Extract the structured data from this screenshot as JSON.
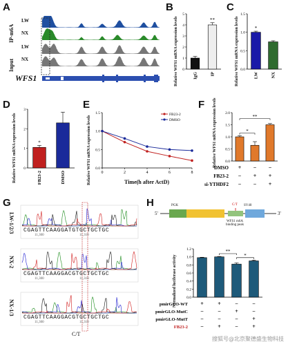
{
  "panels": {
    "A": {
      "label": "A",
      "group_top": "IP-m6A",
      "group_bottom": "Input",
      "tracks": [
        "LW",
        "NX",
        "LW",
        "NX"
      ],
      "gene": "WFS1",
      "track_colors": [
        "#1f4fa0",
        "#2a8a2a",
        "#777777",
        "#777777"
      ]
    },
    "B": {
      "label": "B",
      "chart_data": {
        "type": "bar",
        "categories": [
          "IgG",
          "IP"
        ],
        "values": [
          1.0,
          4.0
        ],
        "errors": [
          0.15,
          0.2
        ],
        "ylabel": "Relative WFS1 mRNA expression levels",
        "ylim": [
          0,
          5
        ],
        "yticks": [
          0,
          1,
          2,
          3,
          4,
          5
        ],
        "significance": "**",
        "colors": [
          "#111111",
          "#eeeeee"
        ]
      }
    },
    "C": {
      "label": "C",
      "chart_data": {
        "type": "bar",
        "categories": [
          "LW",
          "NX"
        ],
        "values": [
          1.0,
          0.74
        ],
        "errors": [
          0.03,
          0.03
        ],
        "ylabel": "Relative WFS1 mRNA expression levels",
        "ylim": [
          0,
          1.5
        ],
        "yticks": [
          0.0,
          0.5,
          1.0,
          1.5
        ],
        "significance": "*",
        "colors": [
          "#1a1aa8",
          "#2f6b2f"
        ]
      }
    },
    "D": {
      "label": "D",
      "chart_data": {
        "type": "bar",
        "categories": [
          "FB23-2",
          "DMSO"
        ],
        "values": [
          1.05,
          2.3
        ],
        "errors": [
          0.1,
          0.55
        ],
        "ylabel": "Relative WFS1 mRNA expression levels",
        "ylim": [
          0,
          3
        ],
        "yticks": [
          0,
          1,
          2,
          3
        ],
        "significance": "*",
        "colors": [
          "#c0201f",
          "#1a2a9a"
        ]
      }
    },
    "E": {
      "label": "E",
      "chart_data": {
        "type": "line",
        "x": [
          0,
          2,
          4,
          6,
          8
        ],
        "xlabel": "Time(h after ActD)",
        "ylabel": "Relative WFS1 mRNA expression levels",
        "xlim": [
          0,
          8
        ],
        "ylim": [
          0.0,
          1.5
        ],
        "xticks": [
          0,
          2,
          4,
          6,
          8
        ],
        "yticks": [
          0.0,
          0.5,
          1.0,
          1.5
        ],
        "series": [
          {
            "name": "FB23-2",
            "values": [
              1.0,
              0.7,
              0.45,
              0.32,
              0.2
            ],
            "color": "#c0201f"
          },
          {
            "name": "DMSO",
            "values": [
              1.0,
              0.8,
              0.58,
              0.5,
              0.47
            ],
            "color": "#1a2a9a"
          }
        ],
        "legend_position": "top-right"
      }
    },
    "F": {
      "label": "F",
      "chart_data": {
        "type": "bar",
        "categories": [
          "1",
          "2",
          "3"
        ],
        "values": [
          1.0,
          0.65,
          1.5
        ],
        "errors": [
          0.05,
          0.15,
          0.05
        ],
        "ylabel": "Relative WFS1 mRNA expression levels",
        "ylim": [
          0,
          2.0
        ],
        "yticks": [
          0.0,
          0.5,
          1.0,
          1.5,
          2.0
        ],
        "color": "#e0792b",
        "significance": [
          "*",
          "**"
        ],
        "conditions": [
          {
            "name": "DMSO",
            "signs": [
              "+",
              "−",
              "−"
            ]
          },
          {
            "name": "FB23-2",
            "signs": [
              "−",
              "+",
              "+"
            ]
          },
          {
            "name": "si-YTHDF2",
            "signs": [
              "−",
              "−",
              "+"
            ]
          }
        ]
      }
    },
    "G": {
      "label": "G",
      "rows": [
        {
          "name": "LW-1/2/3",
          "seq": "CGAGTTCAAGGATGTGCTGCTGC",
          "pos": [
            "11,300",
            "11,310"
          ]
        },
        {
          "name": "NX-2",
          "seq": "CGAGTTCAAGGACGTGCTGCTGC",
          "pos": [
            "11,300",
            "11,310"
          ]
        },
        {
          "name": "NX-1/3",
          "seq": "CGAGTTCAAGGACGTGCTGCTGC",
          "pos": [
            "11,300",
            "11,310"
          ]
        }
      ],
      "mutation": "C/T"
    },
    "H": {
      "label": "H",
      "construct": {
        "five_prime": "5'",
        "three_prime": "3'",
        "pgk": "PGK",
        "sv40": "SV40",
        "mut": "C/T",
        "caption": "WFS1 m6A binding peak"
      },
      "chart_data": {
        "type": "bar",
        "categories": [
          "1",
          "2",
          "3",
          "4"
        ],
        "values": [
          0.98,
          1.0,
          0.82,
          0.9
        ],
        "errors": [
          0.01,
          0.01,
          0.03,
          0.02
        ],
        "ylabel": "Normalized luciferase activity",
        "ylim": [
          0.0,
          1.2
        ],
        "yticks": [
          0.0,
          0.2,
          0.4,
          0.6,
          0.8,
          1.0,
          1.2
        ],
        "color": "#1e5a7a",
        "significance": [
          "**",
          "*"
        ],
        "conditions": [
          {
            "name": "pmirGLO-WT",
            "signs": [
              "+",
              "+",
              "−",
              "−"
            ]
          },
          {
            "name": "pmirGLO-MutC",
            "signs": [
              "−",
              "−",
              "+",
              "−"
            ]
          },
          {
            "name": "pmirGLO-MutT",
            "signs": [
              "−",
              "−",
              "−",
              "+"
            ]
          },
          {
            "name": "FB23-2",
            "signs": [
              "−",
              "+",
              "−",
              "+"
            ]
          }
        ]
      }
    }
  },
  "watermark": "搜狐号@北京聚德盛生物科技"
}
